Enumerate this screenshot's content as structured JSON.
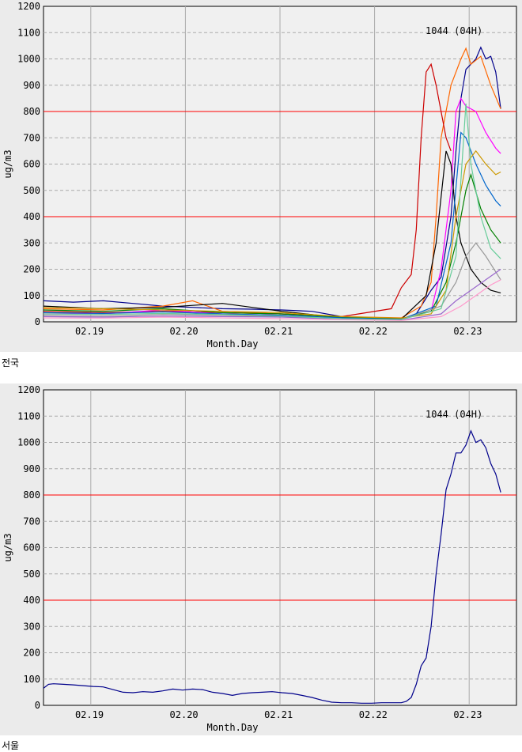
{
  "chart_data": [
    {
      "type": "line",
      "caption": "전국",
      "xlabel": "Month.Day",
      "ylabel": "ug/m3",
      "x_ticks": [
        "02.19",
        "02.20",
        "02.21",
        "02.22",
        "02.23"
      ],
      "y_ticks": [
        0,
        100,
        200,
        300,
        400,
        500,
        600,
        700,
        800,
        900,
        1000,
        1100,
        1200
      ],
      "ylim": [
        0,
        1200
      ],
      "xlim": [
        "02.18 12H",
        "02.23 12H"
      ],
      "x_grid_lines": [
        "02.19 00H",
        "02.20 00H",
        "02.21 00H",
        "02.22 00H",
        "02.23 00H"
      ],
      "threshold_lines": [
        400,
        800
      ],
      "threshold_color": "#ff0000",
      "grid": true,
      "annotation": "1044 (04H)",
      "note_series": "many overlapping regional station series; representative series reproduced",
      "series": [
        {
          "color": "#00008b",
          "points": [
            [
              0,
              80
            ],
            [
              12,
              75
            ],
            [
              24,
              80
            ],
            [
              36,
              70
            ],
            [
              48,
              60
            ],
            [
              60,
              55
            ],
            [
              72,
              50
            ],
            [
              84,
              48
            ],
            [
              96,
              45
            ],
            [
              108,
              40
            ],
            [
              120,
              20
            ],
            [
              132,
              10
            ],
            [
              144,
              8
            ],
            [
              150,
              30
            ],
            [
              156,
              120
            ],
            [
              160,
              170
            ],
            [
              164,
              400
            ],
            [
              166,
              650
            ],
            [
              168,
              850
            ],
            [
              170,
              960
            ],
            [
              172,
              980
            ],
            [
              174,
              1000
            ],
            [
              176,
              1044
            ],
            [
              178,
              1000
            ],
            [
              180,
              1010
            ],
            [
              182,
              950
            ],
            [
              184,
              810
            ]
          ]
        },
        {
          "color": "#ff6600",
          "points": [
            [
              0,
              50
            ],
            [
              24,
              45
            ],
            [
              48,
              60
            ],
            [
              60,
              80
            ],
            [
              72,
              40
            ],
            [
              96,
              30
            ],
            [
              120,
              20
            ],
            [
              144,
              15
            ],
            [
              152,
              60
            ],
            [
              156,
              150
            ],
            [
              158,
              400
            ],
            [
              160,
              700
            ],
            [
              164,
              900
            ],
            [
              168,
              1000
            ],
            [
              170,
              1040
            ],
            [
              172,
              980
            ],
            [
              176,
              1010
            ],
            [
              180,
              900
            ],
            [
              184,
              810
            ]
          ]
        },
        {
          "color": "#cc0000",
          "points": [
            [
              0,
              40
            ],
            [
              24,
              35
            ],
            [
              48,
              40
            ],
            [
              72,
              35
            ],
            [
              96,
              30
            ],
            [
              120,
              20
            ],
            [
              140,
              50
            ],
            [
              144,
              130
            ],
            [
              148,
              180
            ],
            [
              150,
              350
            ],
            [
              152,
              700
            ],
            [
              154,
              950
            ],
            [
              156,
              980
            ],
            [
              158,
              900
            ],
            [
              160,
              800
            ],
            [
              162,
              700
            ],
            [
              164,
              650
            ]
          ]
        },
        {
          "color": "#ff00ff",
          "points": [
            [
              0,
              30
            ],
            [
              24,
              30
            ],
            [
              48,
              45
            ],
            [
              72,
              30
            ],
            [
              96,
              25
            ],
            [
              120,
              15
            ],
            [
              144,
              12
            ],
            [
              156,
              40
            ],
            [
              160,
              200
            ],
            [
              164,
              500
            ],
            [
              166,
              800
            ],
            [
              168,
              850
            ],
            [
              170,
              820
            ],
            [
              174,
              800
            ],
            [
              178,
              720
            ],
            [
              182,
              660
            ],
            [
              184,
              640
            ]
          ]
        },
        {
          "color": "#000000",
          "points": [
            [
              0,
              60
            ],
            [
              24,
              50
            ],
            [
              48,
              55
            ],
            [
              72,
              70
            ],
            [
              96,
              40
            ],
            [
              120,
              15
            ],
            [
              144,
              10
            ],
            [
              154,
              100
            ],
            [
              158,
              300
            ],
            [
              162,
              650
            ],
            [
              164,
              600
            ],
            [
              166,
              400
            ],
            [
              168,
              300
            ],
            [
              172,
              200
            ],
            [
              176,
              150
            ],
            [
              180,
              120
            ],
            [
              184,
              110
            ]
          ]
        },
        {
          "color": "#008000",
          "points": [
            [
              0,
              45
            ],
            [
              24,
              40
            ],
            [
              48,
              50
            ],
            [
              72,
              35
            ],
            [
              96,
              30
            ],
            [
              120,
              18
            ],
            [
              144,
              12
            ],
            [
              156,
              40
            ],
            [
              162,
              150
            ],
            [
              166,
              300
            ],
            [
              170,
              500
            ],
            [
              172,
              560
            ],
            [
              176,
              430
            ],
            [
              180,
              350
            ],
            [
              184,
              300
            ]
          ]
        },
        {
          "color": "#0066cc",
          "points": [
            [
              0,
              35
            ],
            [
              24,
              32
            ],
            [
              48,
              38
            ],
            [
              72,
              30
            ],
            [
              96,
              25
            ],
            [
              120,
              15
            ],
            [
              144,
              10
            ],
            [
              158,
              60
            ],
            [
              164,
              300
            ],
            [
              168,
              720
            ],
            [
              170,
              700
            ],
            [
              174,
              600
            ],
            [
              178,
              520
            ],
            [
              182,
              460
            ],
            [
              184,
              440
            ]
          ]
        },
        {
          "color": "#cc9900",
          "points": [
            [
              0,
              55
            ],
            [
              24,
              50
            ],
            [
              48,
              45
            ],
            [
              72,
              40
            ],
            [
              96,
              35
            ],
            [
              120,
              20
            ],
            [
              144,
              14
            ],
            [
              156,
              30
            ],
            [
              162,
              120
            ],
            [
              166,
              400
            ],
            [
              170,
              600
            ],
            [
              174,
              650
            ],
            [
              178,
              600
            ],
            [
              182,
              560
            ],
            [
              184,
              570
            ]
          ]
        },
        {
          "color": "#999999",
          "points": [
            [
              0,
              25
            ],
            [
              24,
              22
            ],
            [
              48,
              28
            ],
            [
              72,
              25
            ],
            [
              96,
              20
            ],
            [
              120,
              12
            ],
            [
              144,
              8
            ],
            [
              160,
              60
            ],
            [
              166,
              150
            ],
            [
              170,
              250
            ],
            [
              174,
              300
            ],
            [
              178,
              250
            ],
            [
              184,
              160
            ]
          ]
        },
        {
          "color": "#9966cc",
          "points": [
            [
              0,
              20
            ],
            [
              24,
              18
            ],
            [
              48,
              22
            ],
            [
              72,
              20
            ],
            [
              96,
              18
            ],
            [
              120,
              10
            ],
            [
              144,
              6
            ],
            [
              160,
              30
            ],
            [
              166,
              80
            ],
            [
              172,
              120
            ],
            [
              178,
              160
            ],
            [
              184,
              200
            ]
          ]
        },
        {
          "color": "#66cc99",
          "points": [
            [
              0,
              30
            ],
            [
              24,
              28
            ],
            [
              48,
              32
            ],
            [
              72,
              28
            ],
            [
              96,
              22
            ],
            [
              120,
              12
            ],
            [
              144,
              8
            ],
            [
              160,
              50
            ],
            [
              166,
              250
            ],
            [
              170,
              830
            ],
            [
              172,
              600
            ],
            [
              176,
              400
            ],
            [
              180,
              280
            ],
            [
              184,
              240
            ]
          ]
        },
        {
          "color": "#ff99cc",
          "points": [
            [
              0,
              15
            ],
            [
              24,
              14
            ],
            [
              48,
              18
            ],
            [
              72,
              15
            ],
            [
              96,
              12
            ],
            [
              120,
              8
            ],
            [
              144,
              5
            ],
            [
              160,
              20
            ],
            [
              168,
              60
            ],
            [
              174,
              100
            ],
            [
              180,
              140
            ],
            [
              184,
              160
            ]
          ]
        }
      ]
    },
    {
      "type": "line",
      "caption": "서울",
      "xlabel": "Month.Day",
      "ylabel": "ug/m3",
      "x_ticks": [
        "02.19",
        "02.20",
        "02.21",
        "02.22",
        "02.23"
      ],
      "y_ticks": [
        0,
        100,
        200,
        300,
        400,
        500,
        600,
        700,
        800,
        900,
        1000,
        1100,
        1200
      ],
      "ylim": [
        0,
        1200
      ],
      "xlim": [
        "02.18 12H",
        "02.23 12H"
      ],
      "x_grid_lines": [
        "02.19 00H",
        "02.20 00H",
        "02.21 00H",
        "02.22 00H",
        "02.23 00H"
      ],
      "threshold_lines": [
        400,
        800
      ],
      "threshold_color": "#ff0000",
      "grid": true,
      "annotation": "1044 (04H)",
      "series": [
        {
          "color": "#00008b",
          "points": [
            [
              0,
              65
            ],
            [
              2,
              80
            ],
            [
              4,
              82
            ],
            [
              8,
              80
            ],
            [
              12,
              78
            ],
            [
              16,
              75
            ],
            [
              20,
              72
            ],
            [
              24,
              70
            ],
            [
              28,
              60
            ],
            [
              32,
              50
            ],
            [
              36,
              48
            ],
            [
              40,
              52
            ],
            [
              44,
              50
            ],
            [
              48,
              55
            ],
            [
              52,
              62
            ],
            [
              56,
              58
            ],
            [
              60,
              62
            ],
            [
              64,
              60
            ],
            [
              68,
              50
            ],
            [
              72,
              45
            ],
            [
              76,
              38
            ],
            [
              80,
              45
            ],
            [
              84,
              48
            ],
            [
              88,
              50
            ],
            [
              92,
              52
            ],
            [
              96,
              48
            ],
            [
              100,
              45
            ],
            [
              104,
              38
            ],
            [
              108,
              30
            ],
            [
              112,
              20
            ],
            [
              116,
              12
            ],
            [
              120,
              10
            ],
            [
              124,
              10
            ],
            [
              128,
              8
            ],
            [
              132,
              8
            ],
            [
              136,
              10
            ],
            [
              140,
              10
            ],
            [
              144,
              10
            ],
            [
              146,
              15
            ],
            [
              148,
              30
            ],
            [
              150,
              80
            ],
            [
              152,
              150
            ],
            [
              154,
              180
            ],
            [
              156,
              300
            ],
            [
              158,
              500
            ],
            [
              160,
              650
            ],
            [
              162,
              820
            ],
            [
              164,
              880
            ],
            [
              166,
              960
            ],
            [
              168,
              960
            ],
            [
              170,
              990
            ],
            [
              172,
              1044
            ],
            [
              174,
              1000
            ],
            [
              176,
              1010
            ],
            [
              178,
              980
            ],
            [
              180,
              920
            ],
            [
              182,
              880
            ],
            [
              184,
              810
            ]
          ]
        }
      ]
    }
  ]
}
